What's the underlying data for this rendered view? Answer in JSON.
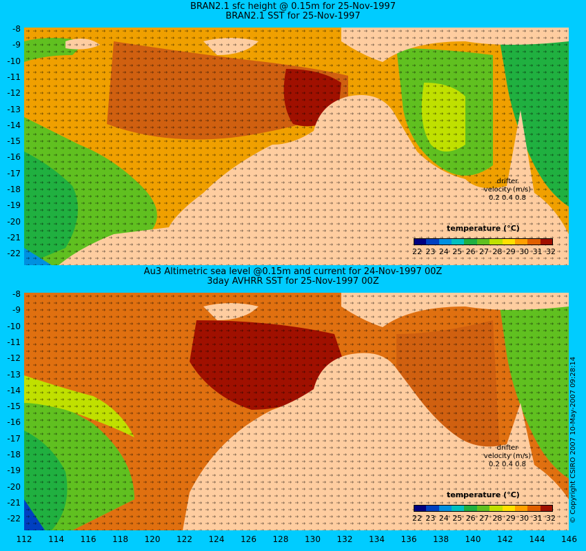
{
  "top": {
    "title1": "BRAN2.1 sfc height @ 0.15m for 25-Nov-1997",
    "title2": "BRAN2.1 SST for 25-Nov-1997"
  },
  "bottom": {
    "title1": "Au3 Altimetric sea level  @0.15m and current for 24-Nov-1997 00Z",
    "title2": "3day AVHRR SST for 25-Nov-1997 00Z"
  },
  "lat_labels": [
    "-8",
    "-9",
    "-10",
    "-11",
    "-12",
    "-13",
    "-14",
    "-15",
    "-16",
    "-17",
    "-18",
    "-19",
    "-20",
    "-21",
    "-22"
  ],
  "lon_labels": [
    "112",
    "114",
    "116",
    "118",
    "120",
    "122",
    "124",
    "126",
    "128",
    "130",
    "132",
    "134",
    "136",
    "138",
    "140",
    "142",
    "144",
    "146"
  ],
  "colorbar": {
    "title": "temperature (°C)",
    "ticks": [
      "22",
      "23",
      "24",
      "25",
      "26",
      "27",
      "28",
      "29",
      "30",
      "31",
      "32"
    ],
    "colors": [
      "#000080",
      "#0040c0",
      "#0090e0",
      "#00c0c0",
      "#20b040",
      "#60c020",
      "#c0e000",
      "#ffe000",
      "#ffa000",
      "#e06000",
      "#a01000"
    ]
  },
  "drifter": {
    "line1": "drifter",
    "line2": "velocity (m/s)",
    "scale": "0.2 0.4 0.8"
  },
  "copyright": "© Copyright CSIRO 2007  10-May-2007 09:28:14",
  "colors": {
    "land": "#fecda0",
    "background": "#00ccff"
  }
}
